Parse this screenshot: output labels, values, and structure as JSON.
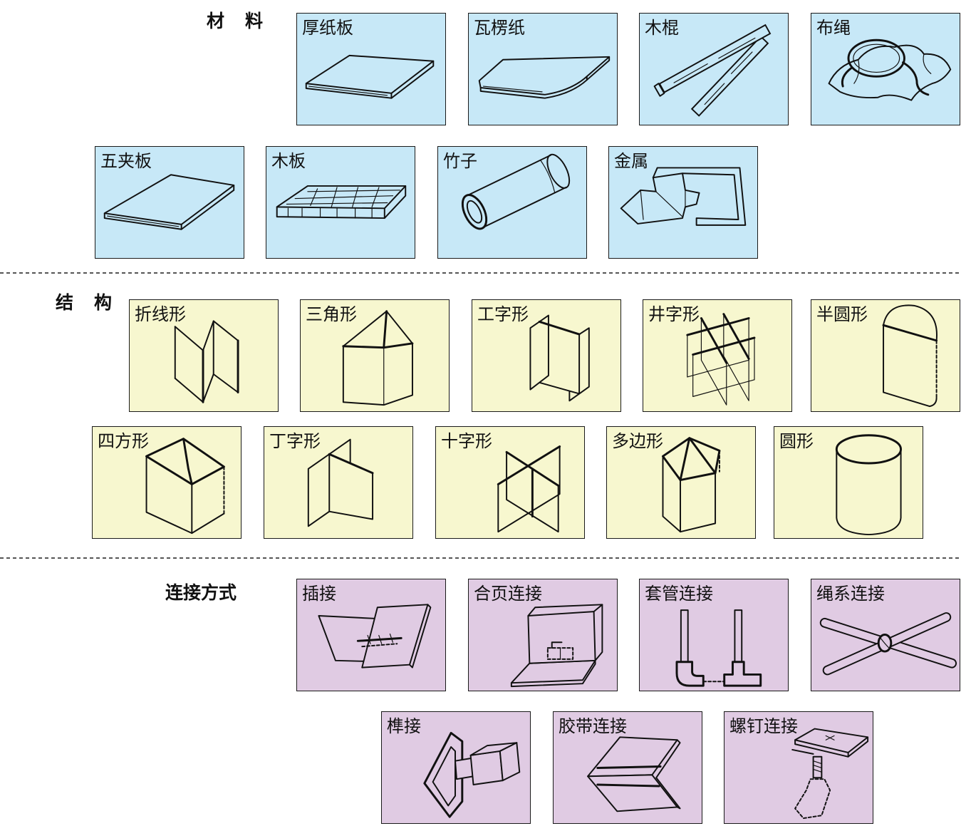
{
  "sections": [
    {
      "title": "材 料",
      "items": [
        {
          "label": "厚纸板",
          "icon": "thick-cardboard"
        },
        {
          "label": "瓦楞纸",
          "icon": "corrugated-paper"
        },
        {
          "label": "木棍",
          "icon": "wooden-sticks"
        },
        {
          "label": "布绳",
          "icon": "cloth-rope"
        },
        {
          "label": "五夹板",
          "icon": "plywood"
        },
        {
          "label": "木板",
          "icon": "wooden-board"
        },
        {
          "label": "竹子",
          "icon": "bamboo"
        },
        {
          "label": "金属",
          "icon": "metal"
        }
      ]
    },
    {
      "title": "结 构",
      "items": [
        {
          "label": "折线形",
          "icon": "zigzag-structure"
        },
        {
          "label": "三角形",
          "icon": "triangle-structure"
        },
        {
          "label": "工字形",
          "icon": "i-shape-structure"
        },
        {
          "label": "井字形",
          "icon": "grid-structure"
        },
        {
          "label": "半圆形",
          "icon": "semicircle-structure"
        },
        {
          "label": "四方形",
          "icon": "square-structure"
        },
        {
          "label": "丁字形",
          "icon": "t-shape-structure"
        },
        {
          "label": "十字形",
          "icon": "cross-structure"
        },
        {
          "label": "多边形",
          "icon": "polygon-structure"
        },
        {
          "label": "圆形",
          "icon": "cylinder-structure"
        }
      ]
    },
    {
      "title": "连接方式",
      "items": [
        {
          "label": "插接",
          "icon": "slot-joint"
        },
        {
          "label": "合页连接",
          "icon": "hinge-joint"
        },
        {
          "label": "套管连接",
          "icon": "sleeve-joint"
        },
        {
          "label": "绳系连接",
          "icon": "rope-tie-joint"
        },
        {
          "label": "榫接",
          "icon": "mortise-tenon-joint"
        },
        {
          "label": "胶带连接",
          "icon": "tape-joint"
        },
        {
          "label": "螺钉连接",
          "icon": "screw-joint"
        }
      ]
    }
  ],
  "colors": {
    "materials": "#c7e8f7",
    "structures": "#f7f7cf",
    "connections": "#e0cbe3",
    "border": "#1a1a1a"
  }
}
